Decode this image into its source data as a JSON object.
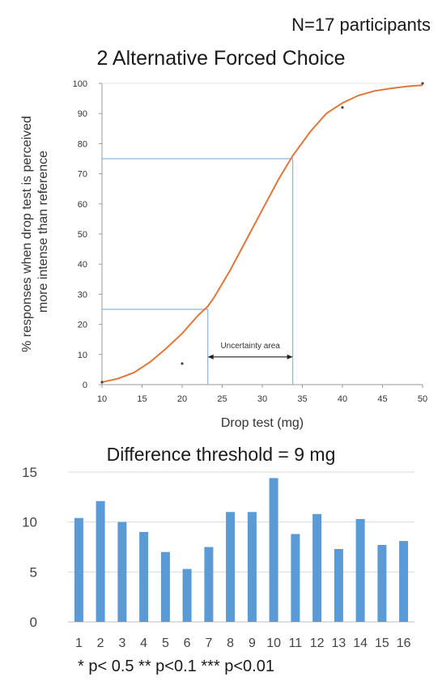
{
  "header": {
    "participants": "N=17 participants",
    "chart_title": "2 Alternative Forced Choice"
  },
  "threshold_text": "Difference threshold = 9 mg",
  "footnote": "* p< 0.5   ** p<0.1   *** p<0.01",
  "colors": {
    "curve": "#e0763a",
    "guide_lines": "#8fb3dd",
    "bars": "#5b9bd5",
    "grid": "#d9d9d9",
    "axis": "#9a9a9a",
    "text": "#333333"
  },
  "chart_data": [
    {
      "type": "line",
      "title": "2 Alternative Forced Choice",
      "xlabel": "Drop test (mg)",
      "ylabel": [
        "% responses when drop test is perceived",
        "more intense than reference"
      ],
      "xlim": [
        10,
        50
      ],
      "ylim": [
        0,
        100
      ],
      "x_ticks": [
        "10",
        "15",
        "20",
        "25",
        "30",
        "35",
        "40",
        "45",
        "50"
      ],
      "y_ticks": [
        "0",
        "10",
        "20",
        "30",
        "40",
        "50",
        "60",
        "70",
        "80",
        "90",
        "100"
      ],
      "grid": false,
      "series": [
        {
          "x": [
            10,
            12,
            14,
            16,
            18,
            20,
            22,
            23.2,
            24,
            26,
            28,
            30,
            32,
            33.8,
            36,
            38,
            40,
            42,
            44,
            46,
            48,
            50
          ],
          "y": [
            0.8,
            2,
            4,
            7.5,
            12,
            17,
            23,
            26,
            29,
            38,
            48,
            58,
            68,
            76,
            84,
            90,
            93.5,
            96,
            97.5,
            98.3,
            99,
            99.4
          ]
        }
      ],
      "points": [
        {
          "x": 10,
          "y": 0.8
        },
        {
          "x": 20,
          "y": 7
        },
        {
          "x": 40,
          "y": 92
        },
        {
          "x": 50,
          "y": 100
        }
      ],
      "guides": [
        {
          "x": 23.2,
          "y": 25
        },
        {
          "x": 33.8,
          "y": 75
        }
      ],
      "annotation": "Uncertainty area",
      "annotation_range": [
        23.2,
        33.8
      ],
      "annotation_y": 10
    },
    {
      "type": "bar",
      "categories": [
        "1",
        "2",
        "3",
        "4",
        "5",
        "6",
        "7",
        "8",
        "9",
        "10",
        "11",
        "12",
        "13",
        "14",
        "15",
        "16"
      ],
      "values": [
        10.4,
        12.1,
        10.0,
        9.0,
        7.0,
        5.3,
        7.5,
        11.0,
        11.0,
        14.4,
        8.8,
        10.8,
        7.3,
        10.3,
        7.7,
        8.1
      ],
      "ylim": [
        0,
        15
      ],
      "y_ticks": [
        "0",
        "5",
        "10",
        "15"
      ],
      "grid": true,
      "legend": "none"
    }
  ]
}
